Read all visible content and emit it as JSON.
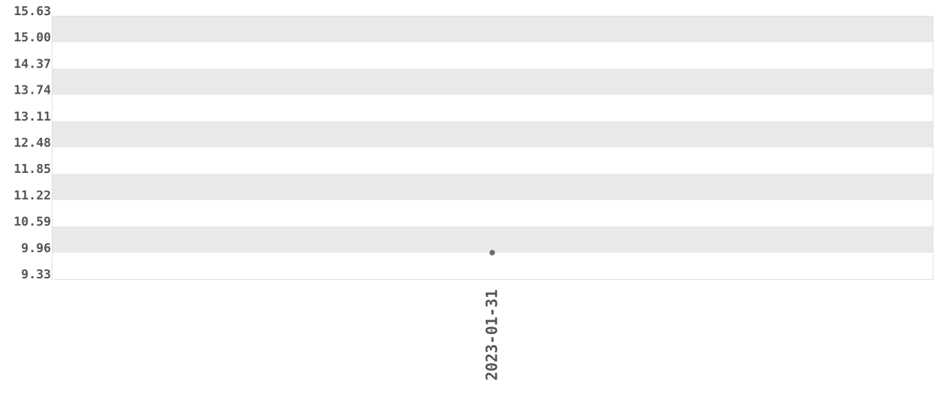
{
  "chart_data": {
    "type": "scatter",
    "title": "",
    "xlabel": "",
    "ylabel": "",
    "ylim": [
      9.33,
      15.63
    ],
    "y_ticks": [
      "9.33",
      "9.96",
      "10.59",
      "11.22",
      "11.85",
      "12.48",
      "13.11",
      "13.74",
      "14.37",
      "15.00",
      "15.63"
    ],
    "x_categories": [
      "2023-01-31"
    ],
    "points": [
      {
        "x": "2023-01-31",
        "y": 9.96
      }
    ],
    "grid": "alternating horizontal bands",
    "legend": "none",
    "colors": {
      "band": "#e9e9e9",
      "point": "#6b6b6b",
      "text": "#555555",
      "border": "#dddddd"
    }
  }
}
